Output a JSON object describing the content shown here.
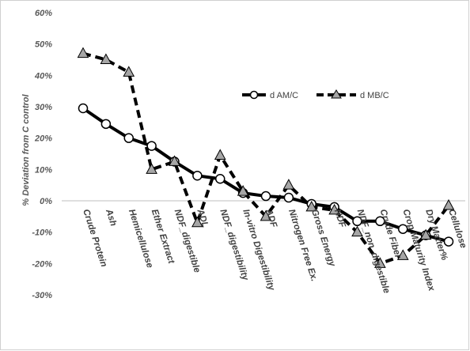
{
  "chart_data": {
    "type": "line",
    "title": "",
    "xlabel": "",
    "ylabel": "% Deviation from C control",
    "ylim": [
      -30,
      60
    ],
    "yticks": [
      "60%",
      "50%",
      "40%",
      "30%",
      "20%",
      "10%",
      "0%",
      "-10%",
      "-20%",
      "-30%"
    ],
    "ytick_values": [
      60,
      50,
      40,
      30,
      20,
      10,
      0,
      -10,
      -20,
      -30
    ],
    "grid": false,
    "legend_position": "top-right",
    "categories": [
      "Crude Protein",
      "Ash",
      "Hemicellulose",
      "Ether Extract",
      "NDF_digestible",
      "ADL",
      "NDF_digestibility",
      "In-vitro Digestibility",
      "ADF",
      "Nitrogen Free Ex.",
      "Gross Energy",
      "NDF",
      "NDF_non_digestible",
      "Crude Fiber",
      "Crop Maturity Index",
      "Dry Matter%",
      "Cellulose"
    ],
    "series": [
      {
        "name": "d AM/C",
        "style": "solid",
        "marker": "circle",
        "color": "#000000",
        "values": [
          29.5,
          24.5,
          20,
          17.5,
          12.5,
          8,
          7,
          2.5,
          1.5,
          1,
          -1,
          -2,
          -6.5,
          -6.5,
          -9,
          -11,
          -13
        ]
      },
      {
        "name": "d MB/C",
        "style": "dashed",
        "marker": "triangle",
        "color": "#000000",
        "values": [
          47,
          45,
          41,
          10,
          12.5,
          -7,
          14.5,
          3,
          -5,
          5,
          -2,
          -3,
          -10,
          -20,
          -17.5,
          -11,
          -1.5
        ]
      }
    ]
  }
}
